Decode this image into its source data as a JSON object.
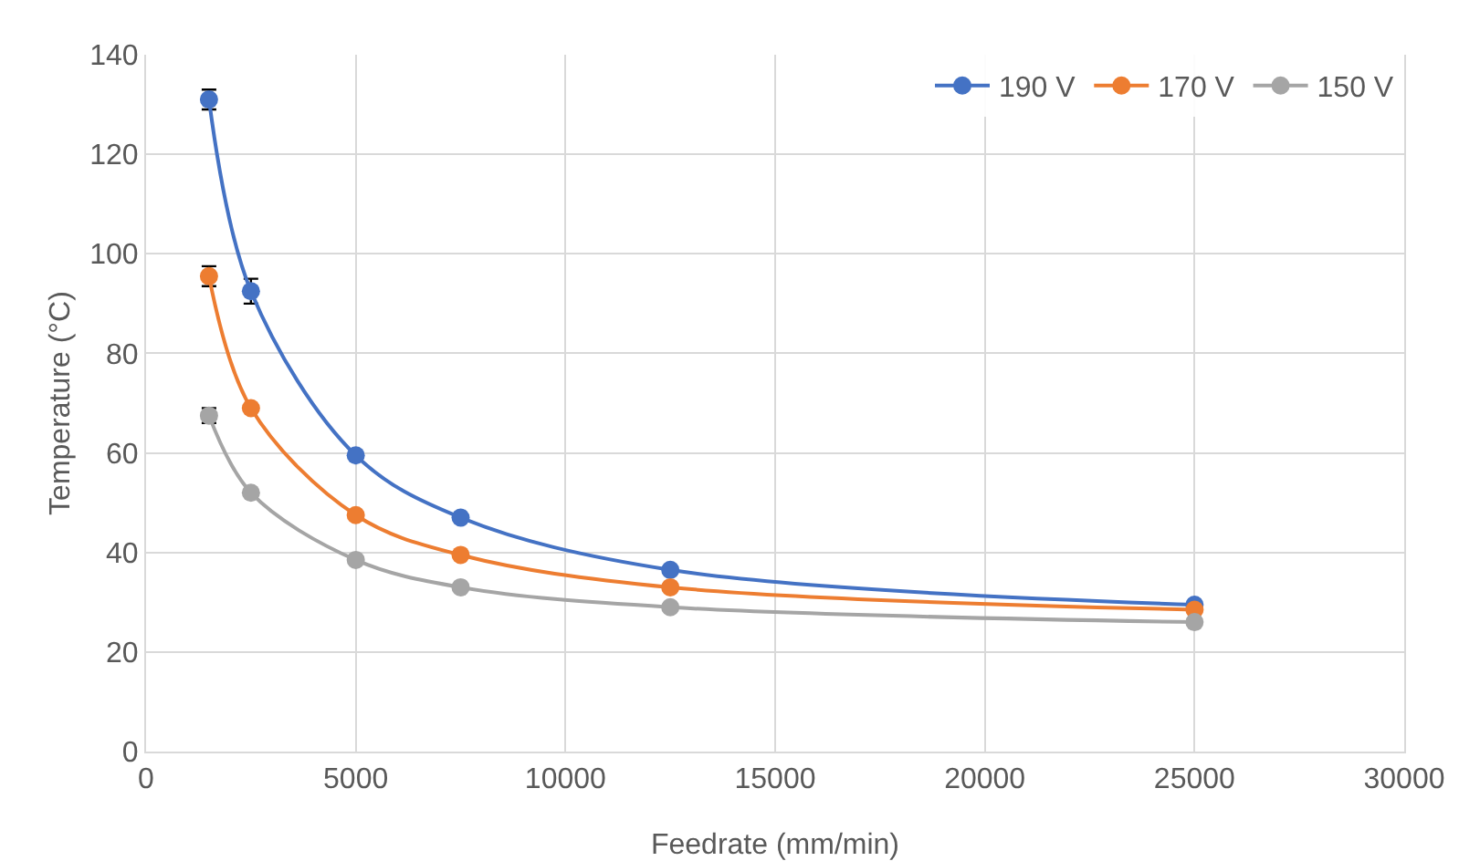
{
  "chart_data": {
    "type": "line",
    "xlabel": "Feedrate (mm/min)",
    "ylabel": "Temperature (°C)",
    "x": [
      1500,
      2500,
      5000,
      7500,
      12500,
      25000
    ],
    "series": [
      {
        "name": "190 V",
        "color": "#4472c4",
        "values": [
          131,
          92.5,
          59.5,
          47,
          36.5,
          29.5
        ],
        "errors": [
          2,
          2.5,
          null,
          null,
          null,
          null
        ]
      },
      {
        "name": "170 V",
        "color": "#ed7d31",
        "values": [
          95.5,
          69,
          47.5,
          39.5,
          33,
          28.5
        ],
        "errors": [
          2,
          null,
          null,
          null,
          null,
          null
        ]
      },
      {
        "name": "150 V",
        "color": "#a5a5a5",
        "values": [
          67.5,
          52,
          38.5,
          33,
          29,
          26
        ],
        "errors": [
          1.5,
          null,
          null,
          null,
          null,
          null
        ]
      }
    ],
    "xlim": [
      0,
      30000
    ],
    "xticks": [
      0,
      5000,
      10000,
      15000,
      20000,
      25000,
      30000
    ],
    "ylim": [
      0,
      140
    ],
    "yticks": [
      0,
      20,
      40,
      60,
      80,
      100,
      120,
      140
    ],
    "grid": true,
    "legend": "top right",
    "marker": "circle",
    "line_style": "solid"
  }
}
